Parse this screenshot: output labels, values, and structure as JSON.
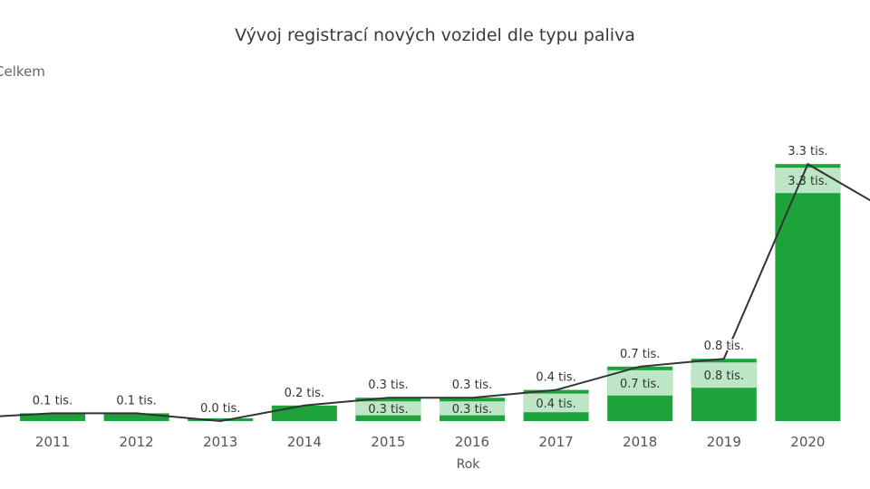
{
  "title": "Vývoj registrací nových vozidel dle typu paliva",
  "legend": {
    "label": "Celkem"
  },
  "colors": {
    "dark": "#1ca33a",
    "light": "#bde6c6",
    "line": "#333333",
    "label_fill": "#ffffff"
  },
  "chart_data": {
    "type": "bar",
    "xlabel": "Rok",
    "categories": [
      "2011",
      "2012",
      "2013",
      "2014",
      "2015",
      "2016",
      "2017",
      "2018",
      "2019",
      "2020"
    ],
    "series": [
      {
        "name": "Celkem",
        "chart": "line",
        "values": [
          0.1,
          0.1,
          0.0,
          0.2,
          0.3,
          0.3,
          0.4,
          0.7,
          0.8,
          3.3
        ],
        "labels": [
          "0.1 tis.",
          "0.1 tis.",
          "0.0 tis.",
          "0.2 tis.",
          "0.3 tis.",
          "0.3 tis.",
          "0.4 tis.",
          "0.7 tis.",
          "0.8 tis.",
          "3.3 tis."
        ]
      },
      {
        "name": "",
        "chart": "stacked-bar",
        "values": [
          0.1,
          0.1,
          0.0,
          0.2,
          0.3,
          0.3,
          0.4,
          0.7,
          0.8,
          3.3
        ],
        "labels": [
          "",
          "",
          "",
          "",
          "0.3 tis.",
          "0.3 tis.",
          "0.4 tis.",
          "0.7 tis.",
          "0.8 tis.",
          "3.3 tis."
        ]
      }
    ],
    "grid": false
  }
}
